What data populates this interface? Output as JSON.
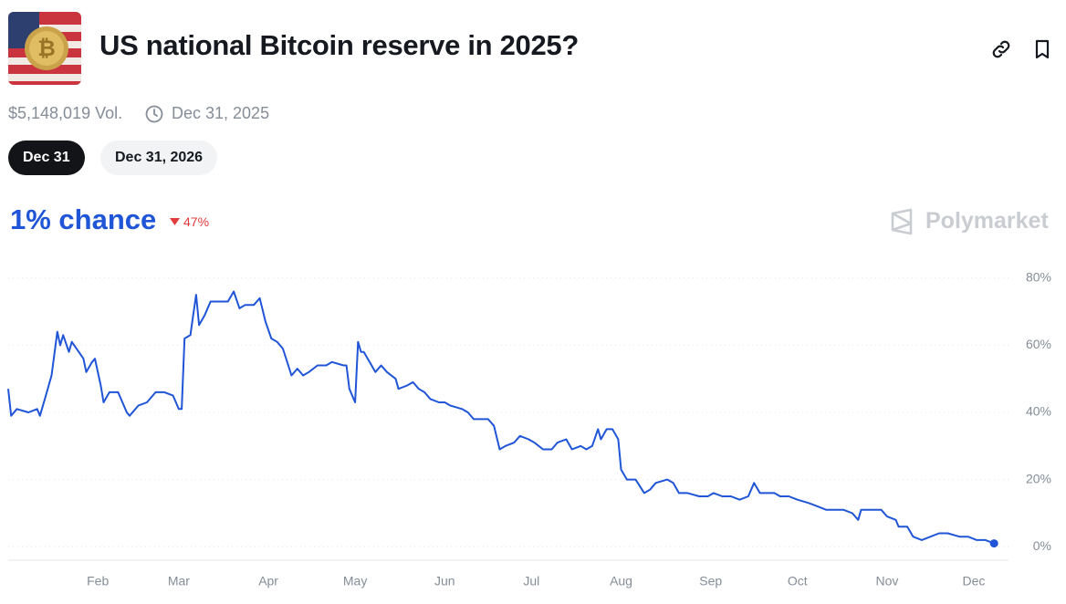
{
  "header": {
    "title": "US national Bitcoin reserve in 2025?",
    "volume": "$5,148,019 Vol.",
    "end_date": "Dec 31, 2025",
    "tabs": [
      "Dec 31",
      "Dec 31, 2026"
    ],
    "chance": "1% chance",
    "change": "47%",
    "brand": "Polymarket"
  },
  "chart_data": {
    "type": "line",
    "color": "#1f55d6",
    "grid": true,
    "x": [
      1,
      2,
      4,
      8,
      11,
      12,
      14,
      16,
      18,
      19,
      20,
      22,
      23,
      27,
      28,
      30,
      31,
      33,
      34,
      36,
      39,
      42,
      43,
      46,
      49,
      52,
      55,
      58,
      60,
      61,
      62,
      64,
      65,
      66,
      67,
      69,
      71,
      74,
      77,
      79,
      81,
      83,
      86,
      88,
      90,
      92,
      94,
      96,
      99,
      101,
      103,
      105,
      108,
      111,
      113,
      117,
      118,
      119,
      121,
      122,
      123,
      124,
      126,
      128,
      130,
      132,
      135,
      136,
      139,
      141,
      143,
      145,
      147,
      150,
      152,
      154,
      158,
      160,
      162,
      165,
      167,
      169,
      171,
      173,
      176,
      178,
      181,
      183,
      186,
      189,
      191,
      194,
      196,
      199,
      201,
      203,
      205,
      206,
      208,
      210,
      212,
      213,
      215,
      218,
      221,
      223,
      225,
      229,
      231,
      233,
      236,
      240,
      243,
      245,
      248,
      251,
      254,
      257,
      259,
      261,
      263,
      266,
      268,
      271,
      274,
      278,
      281,
      284,
      287,
      290,
      293,
      295,
      296,
      300,
      303,
      305,
      308,
      309,
      312,
      314,
      317,
      320,
      323,
      326,
      330,
      333,
      336,
      339,
      342
    ],
    "values": [
      47,
      39,
      41,
      40,
      41,
      39,
      45,
      51,
      64,
      60,
      63,
      58,
      61,
      56,
      52,
      55,
      56,
      48,
      43,
      46,
      46,
      40,
      39,
      42,
      43,
      46,
      46,
      45,
      41,
      41,
      62,
      63,
      69,
      75,
      66,
      69,
      73,
      73,
      73,
      76,
      71,
      72,
      72,
      74,
      67,
      62,
      61,
      59,
      51,
      53,
      51,
      52,
      54,
      54,
      55,
      54,
      54,
      47,
      43,
      61,
      58,
      58,
      55,
      52,
      54,
      52,
      50,
      47,
      48,
      49,
      47,
      46,
      44,
      43,
      43,
      42,
      41,
      40,
      38,
      38,
      38,
      36,
      29,
      30,
      31,
      33,
      32,
      31,
      29,
      29,
      31,
      32,
      29,
      30,
      29,
      30,
      35,
      32,
      35,
      35,
      32,
      23,
      20,
      20,
      16,
      17,
      19,
      20,
      19,
      16,
      16,
      15,
      15,
      16,
      15,
      15,
      14,
      15,
      19,
      16,
      16,
      16,
      15,
      15,
      14,
      13,
      12,
      11,
      11,
      11,
      10,
      8,
      11,
      11,
      11,
      9,
      8,
      6,
      6,
      3,
      2,
      3,
      4,
      4,
      3,
      3,
      2,
      2,
      1
    ],
    "xlim": [
      1,
      347
    ],
    "xticks": [
      {
        "value": 32,
        "label": "Feb"
      },
      {
        "value": 60,
        "label": "Mar"
      },
      {
        "value": 91,
        "label": "Apr"
      },
      {
        "value": 121,
        "label": "May"
      },
      {
        "value": 152,
        "label": "Jun"
      },
      {
        "value": 182,
        "label": "Jul"
      },
      {
        "value": 213,
        "label": "Aug"
      },
      {
        "value": 244,
        "label": "Sep"
      },
      {
        "value": 274,
        "label": "Oct"
      },
      {
        "value": 305,
        "label": "Nov"
      },
      {
        "value": 335,
        "label": "Dec"
      }
    ],
    "ylim": [
      -4,
      84
    ],
    "yticks": [
      {
        "value": 0,
        "label": "0%"
      },
      {
        "value": 20,
        "label": "20%"
      },
      {
        "value": 40,
        "label": "40%"
      },
      {
        "value": 60,
        "label": "60%"
      },
      {
        "value": 80,
        "label": "80%"
      }
    ]
  }
}
